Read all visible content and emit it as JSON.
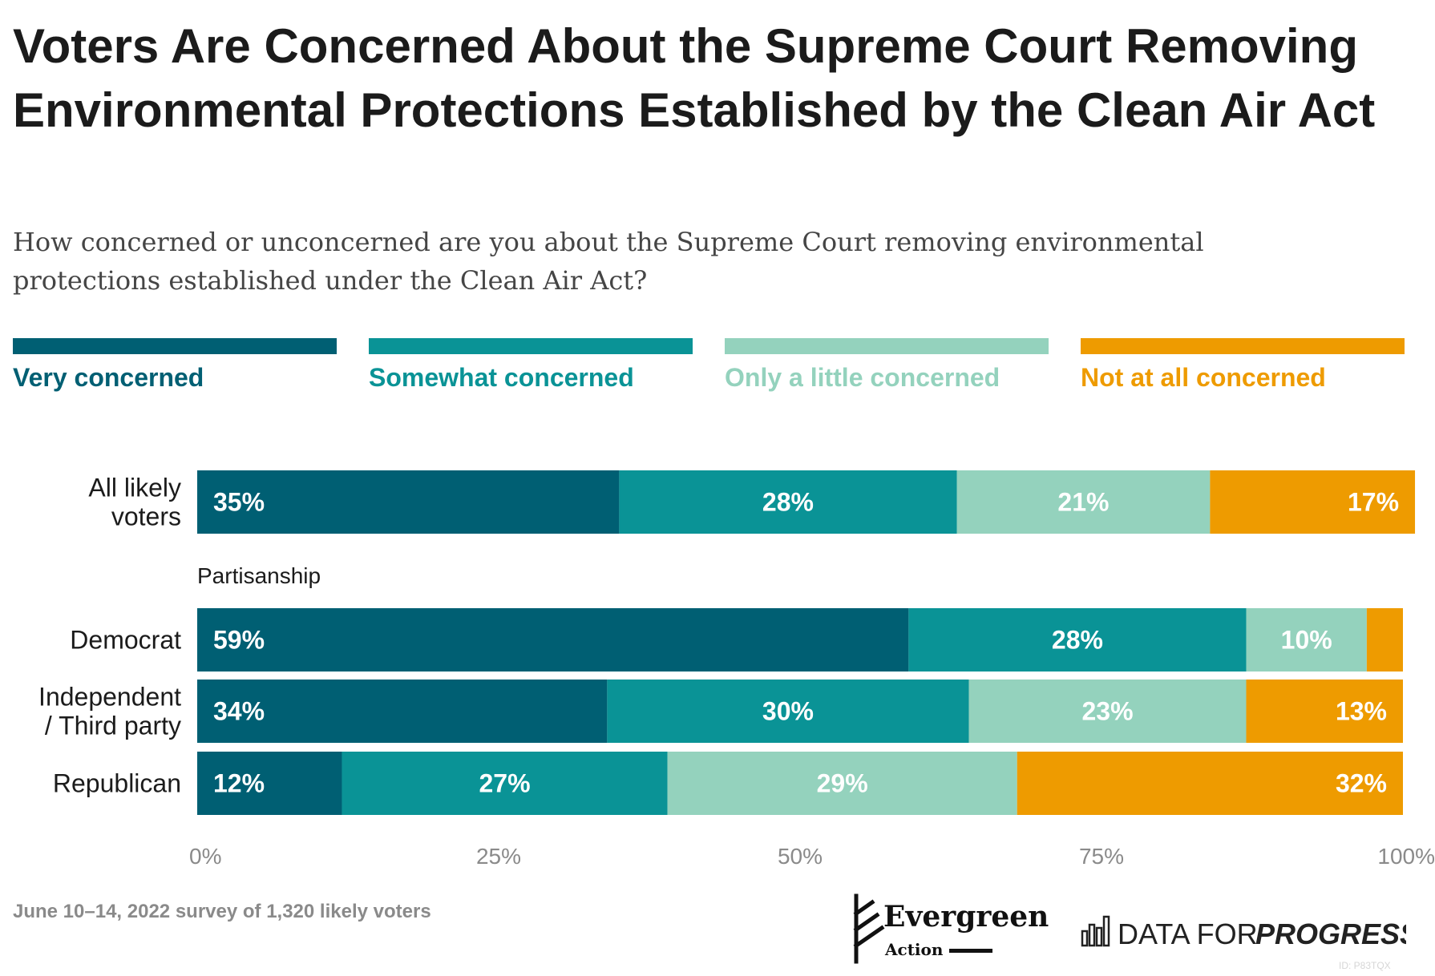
{
  "title": "Voters Are Concerned About the Supreme Court Removing Environmental Protections Established by the Clean Air Act",
  "subtitle": "How concerned or unconcerned are you about the Supreme Court removing environmental protections established under the Clean Air Act?",
  "legend": [
    {
      "label": "Very concerned",
      "color": "#005f73"
    },
    {
      "label": "Somewhat concerned",
      "color": "#0a9396"
    },
    {
      "label": "Only a little concerned",
      "color": "#94d2bd"
    },
    {
      "label": "Not at all concerned",
      "color": "#ee9b00"
    }
  ],
  "chart_data": {
    "type": "bar",
    "orientation": "horizontal",
    "stacked": true,
    "categories": [
      "All likely voters",
      "Democrat",
      "Independent / Third party",
      "Republican"
    ],
    "group_label": "Partisanship",
    "series": [
      {
        "name": "Very concerned",
        "color": "#005f73",
        "values": [
          35,
          59,
          34,
          12
        ],
        "labels": [
          "35%",
          "59%",
          "34%",
          "12%"
        ]
      },
      {
        "name": "Somewhat concerned",
        "color": "#0a9396",
        "values": [
          28,
          28,
          30,
          27
        ],
        "labels": [
          "28%",
          "28%",
          "30%",
          "27%"
        ]
      },
      {
        "name": "Only a little concerned",
        "color": "#94d2bd",
        "values": [
          21,
          10,
          23,
          29
        ],
        "labels": [
          "21%",
          "10%",
          "23%",
          "29%"
        ]
      },
      {
        "name": "Not at all concerned",
        "color": "#ee9b00",
        "values": [
          17,
          3,
          13,
          32
        ],
        "labels": [
          "17%",
          "",
          "13%",
          "32%"
        ]
      }
    ],
    "xlim": [
      0,
      100
    ],
    "xticks": [
      "0%",
      "25%",
      "50%",
      "75%",
      "100%"
    ],
    "grid": false,
    "legend_position": "top"
  },
  "footer": {
    "note": "June 10–14, 2022 survey of 1,320 likely voters",
    "logo_evergreen_name": "Evergreen",
    "logo_evergreen_sub": "Action",
    "logo_dfp_prefix": "DATA FOR",
    "logo_dfp_suffix": "PROGRESS",
    "watermark": "ID: P83TQX"
  }
}
